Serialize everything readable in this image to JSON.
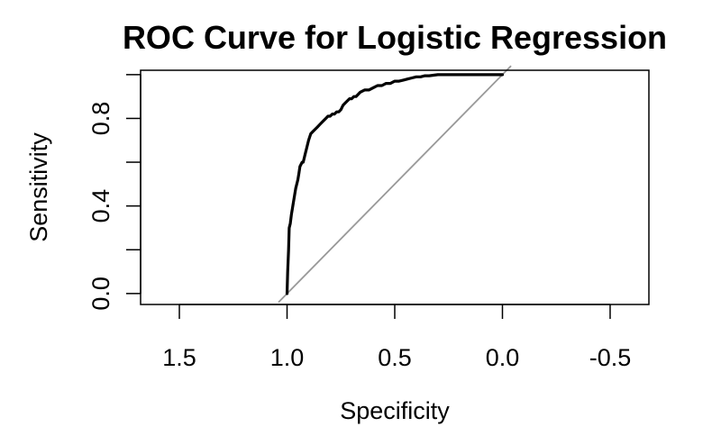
{
  "chart_data": {
    "type": "line",
    "title": "ROC Curve for Logistic Regression",
    "xlabel": "Specificity",
    "ylabel": "Sensitivity",
    "xlim": [
      1.68,
      -0.68
    ],
    "ylim": [
      -0.05,
      1.02
    ],
    "x_reversed": true,
    "grid": false,
    "x_ticks": [
      1.5,
      1.0,
      0.5,
      0.0,
      -0.5
    ],
    "x_tick_labels": [
      "1.5",
      "1.0",
      "0.5",
      "0.0",
      "-0.5"
    ],
    "y_ticks": [
      0.0,
      0.2,
      0.4,
      0.6,
      0.8,
      1.0
    ],
    "y_tick_labels": [
      "0.0",
      "",
      "0.4",
      "",
      "0.8",
      ""
    ],
    "colors": {
      "curve": "#000000",
      "reference": "#999999"
    },
    "series": [
      {
        "x": [
          1.0,
          0.997,
          0.993,
          0.99,
          0.985,
          0.98,
          0.975,
          0.97,
          0.965,
          0.96,
          0.955,
          0.95,
          0.945,
          0.94,
          0.935,
          0.93,
          0.925,
          0.92,
          0.915,
          0.91,
          0.9,
          0.89,
          0.88,
          0.87,
          0.86,
          0.85,
          0.84,
          0.83,
          0.82,
          0.81,
          0.8,
          0.79,
          0.78,
          0.77,
          0.76,
          0.75,
          0.74,
          0.73,
          0.72,
          0.71,
          0.7,
          0.69,
          0.68,
          0.66,
          0.64,
          0.62,
          0.6,
          0.58,
          0.56,
          0.54,
          0.52,
          0.5,
          0.48,
          0.46,
          0.44,
          0.42,
          0.4,
          0.38,
          0.36,
          0.34,
          0.3,
          0.25,
          0.2,
          0.15,
          0.1,
          0.05,
          0.0
        ],
        "y": [
          0.0,
          0.1,
          0.2,
          0.3,
          0.32,
          0.36,
          0.39,
          0.42,
          0.45,
          0.48,
          0.5,
          0.52,
          0.55,
          0.58,
          0.59,
          0.6,
          0.6,
          0.62,
          0.64,
          0.66,
          0.7,
          0.73,
          0.74,
          0.75,
          0.76,
          0.77,
          0.78,
          0.79,
          0.8,
          0.81,
          0.81,
          0.82,
          0.82,
          0.83,
          0.83,
          0.84,
          0.86,
          0.87,
          0.88,
          0.89,
          0.89,
          0.9,
          0.9,
          0.92,
          0.93,
          0.93,
          0.94,
          0.95,
          0.95,
          0.96,
          0.96,
          0.97,
          0.97,
          0.975,
          0.98,
          0.985,
          0.99,
          0.99,
          0.995,
          0.995,
          1.0,
          1.0,
          1.0,
          1.0,
          1.0,
          1.0,
          1.0
        ]
      }
    ],
    "reference_line": {
      "x": [
        1.04,
        -0.04
      ],
      "y": [
        -0.04,
        1.04
      ]
    }
  }
}
